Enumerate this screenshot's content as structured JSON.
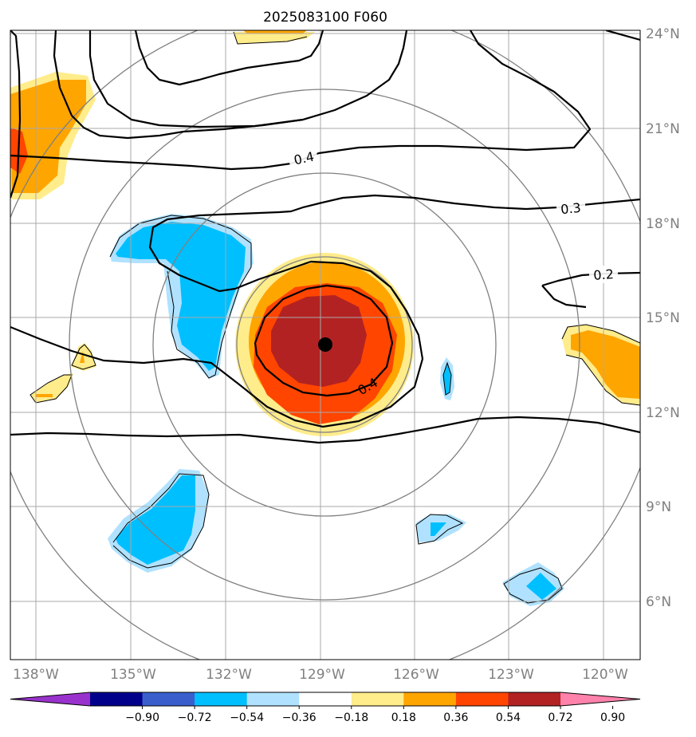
{
  "title": "2025083100 F060",
  "lon_labels": [
    "138°W",
    "135°W",
    "132°W",
    "129°W",
    "126°W",
    "123°W",
    "120°W"
  ],
  "lat_labels": [
    "24°N",
    "21°N",
    "18°N",
    "15°N",
    "12°N",
    "9°N",
    "6°N"
  ],
  "contour_labels": [
    "0.4",
    "0.3",
    "0.2",
    "0.4"
  ],
  "colorbar": {
    "tick_labels": [
      "−0.90",
      "−0.72",
      "−0.54",
      "−0.36",
      "−0.18",
      "0.18",
      "0.36",
      "0.54",
      "0.72",
      "0.90"
    ],
    "colors": [
      "#9932cc",
      "#00008b",
      "#3a5fcd",
      "#00bfff",
      "#b0e2ff",
      "#ffffff",
      "#ffec8b",
      "#ffa500",
      "#ff4500",
      "#b22222",
      "#ff82ab"
    ]
  },
  "storm_center": {
    "lon": -128.9,
    "lat": 14.1
  },
  "colors": {
    "grid": "#a9a9a9",
    "range_rings": "#808080",
    "contours": "#000000"
  }
}
